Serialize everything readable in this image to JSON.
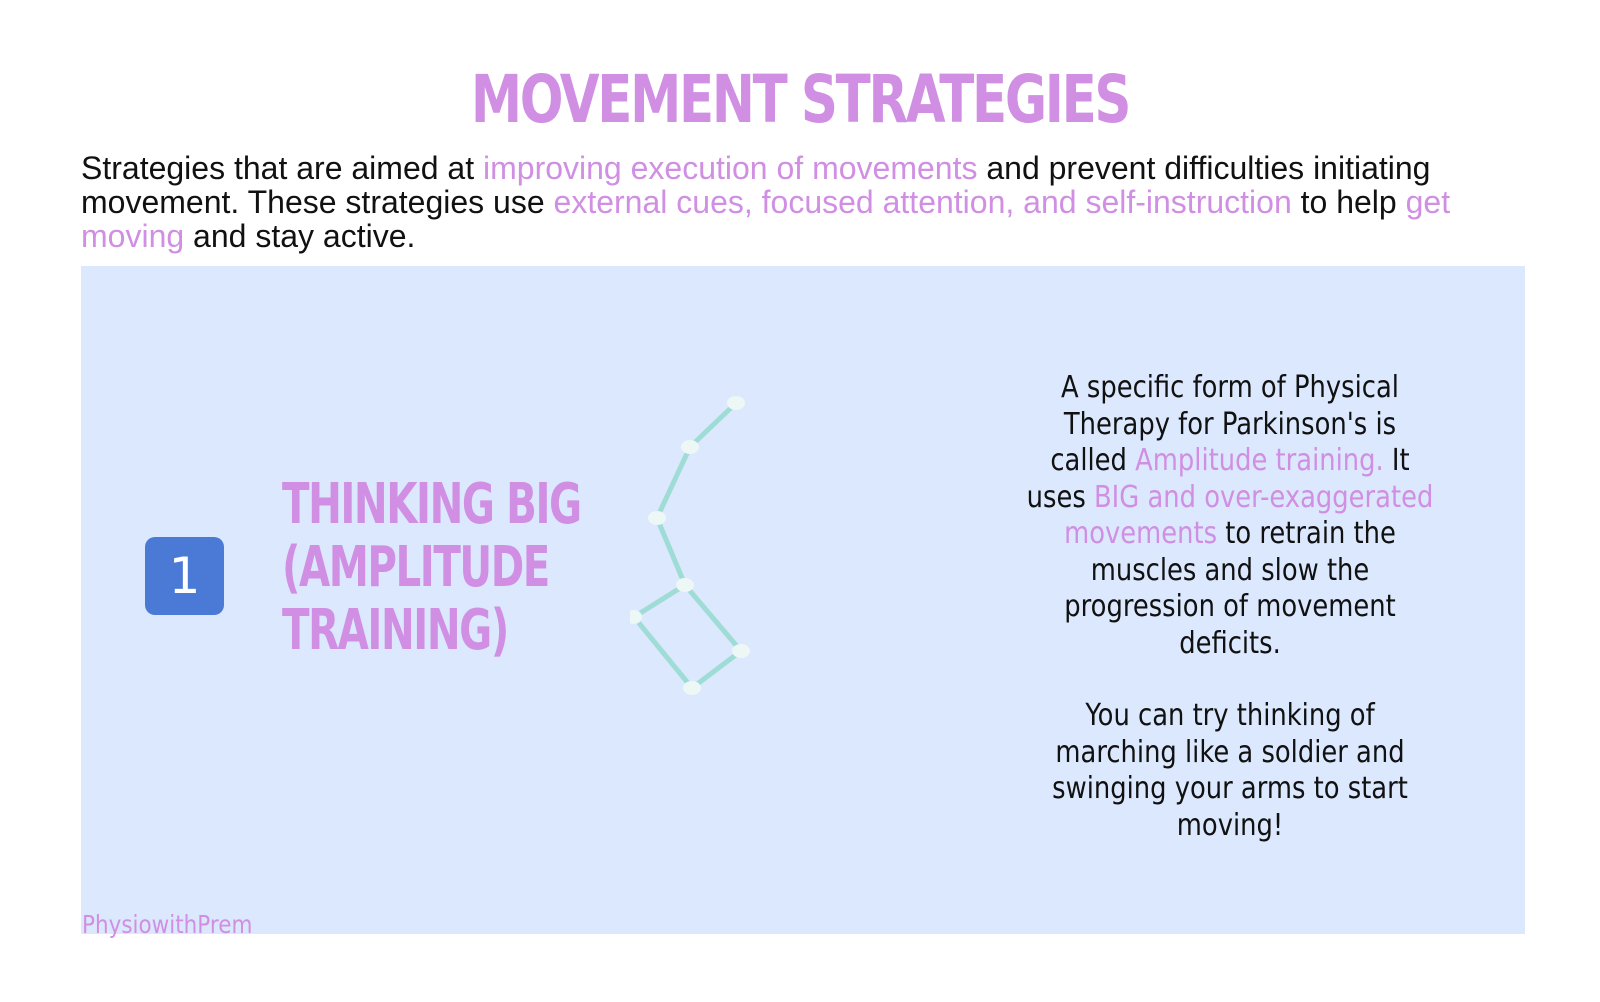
{
  "title": "MOVEMENT STRATEGIES",
  "intro": {
    "part1": "Strategies that are aimed at ",
    "hl1": "improving execution of movements",
    "part2": " and prevent difficulties initiating movement. These strategies use ",
    "hl2": "external cues, focused attention, and self-instruction",
    "part3": " to help ",
    "hl3": "get moving",
    "part4": " and stay active."
  },
  "strategy": {
    "number": "1",
    "heading_line1": "THINKING BIG",
    "heading_line2": "(AMPLITUDE",
    "heading_line3": "TRAINING)",
    "desc": {
      "part1": "A specific form of Physical Therapy for Parkinson's is called ",
      "hl1": "Amplitude training.",
      "part2": " It uses ",
      "hl2": "BIG and over-exaggerated movements",
      "part3": " to retrain the muscles and slow the progression of movement deficits.",
      "tip": "You can try thinking of marching like a soldier and swinging your arms to start moving!"
    }
  },
  "footer": "PhysiowithPrem",
  "colors": {
    "accent": "#d08fe3",
    "panel": "#dbe8fd",
    "badge": "#4a7ad6",
    "figure_line": "#9fdcd6"
  }
}
